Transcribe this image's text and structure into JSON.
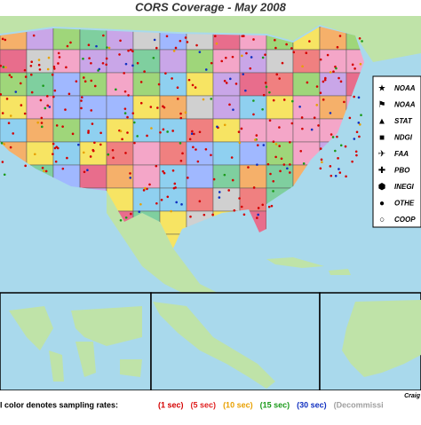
{
  "title": "CORS Coverage - May 2008",
  "legend": [
    {
      "label": "NOAA"
    },
    {
      "label": "NOAA"
    },
    {
      "label": "STAT"
    },
    {
      "label": "NDGI"
    },
    {
      "label": "FAA"
    },
    {
      "label": "PBO"
    },
    {
      "label": "INEGI"
    },
    {
      "label": "OTHE"
    },
    {
      "label": "COOP"
    }
  ],
  "footer": {
    "caption": "l color denotes sampling rates:",
    "rates": [
      {
        "label": "(1 sec)",
        "color": "#d40000"
      },
      {
        "label": "(5 sec)",
        "color": "#e02020"
      },
      {
        "label": "(10 sec)",
        "color": "#e8a000"
      },
      {
        "label": "(15 sec)",
        "color": "#1a9a1a"
      },
      {
        "label": "(30 sec)",
        "color": "#1030c0"
      },
      {
        "label": "(Decommissi",
        "color": "#a0a0a0"
      }
    ]
  },
  "credit": "Craig"
}
